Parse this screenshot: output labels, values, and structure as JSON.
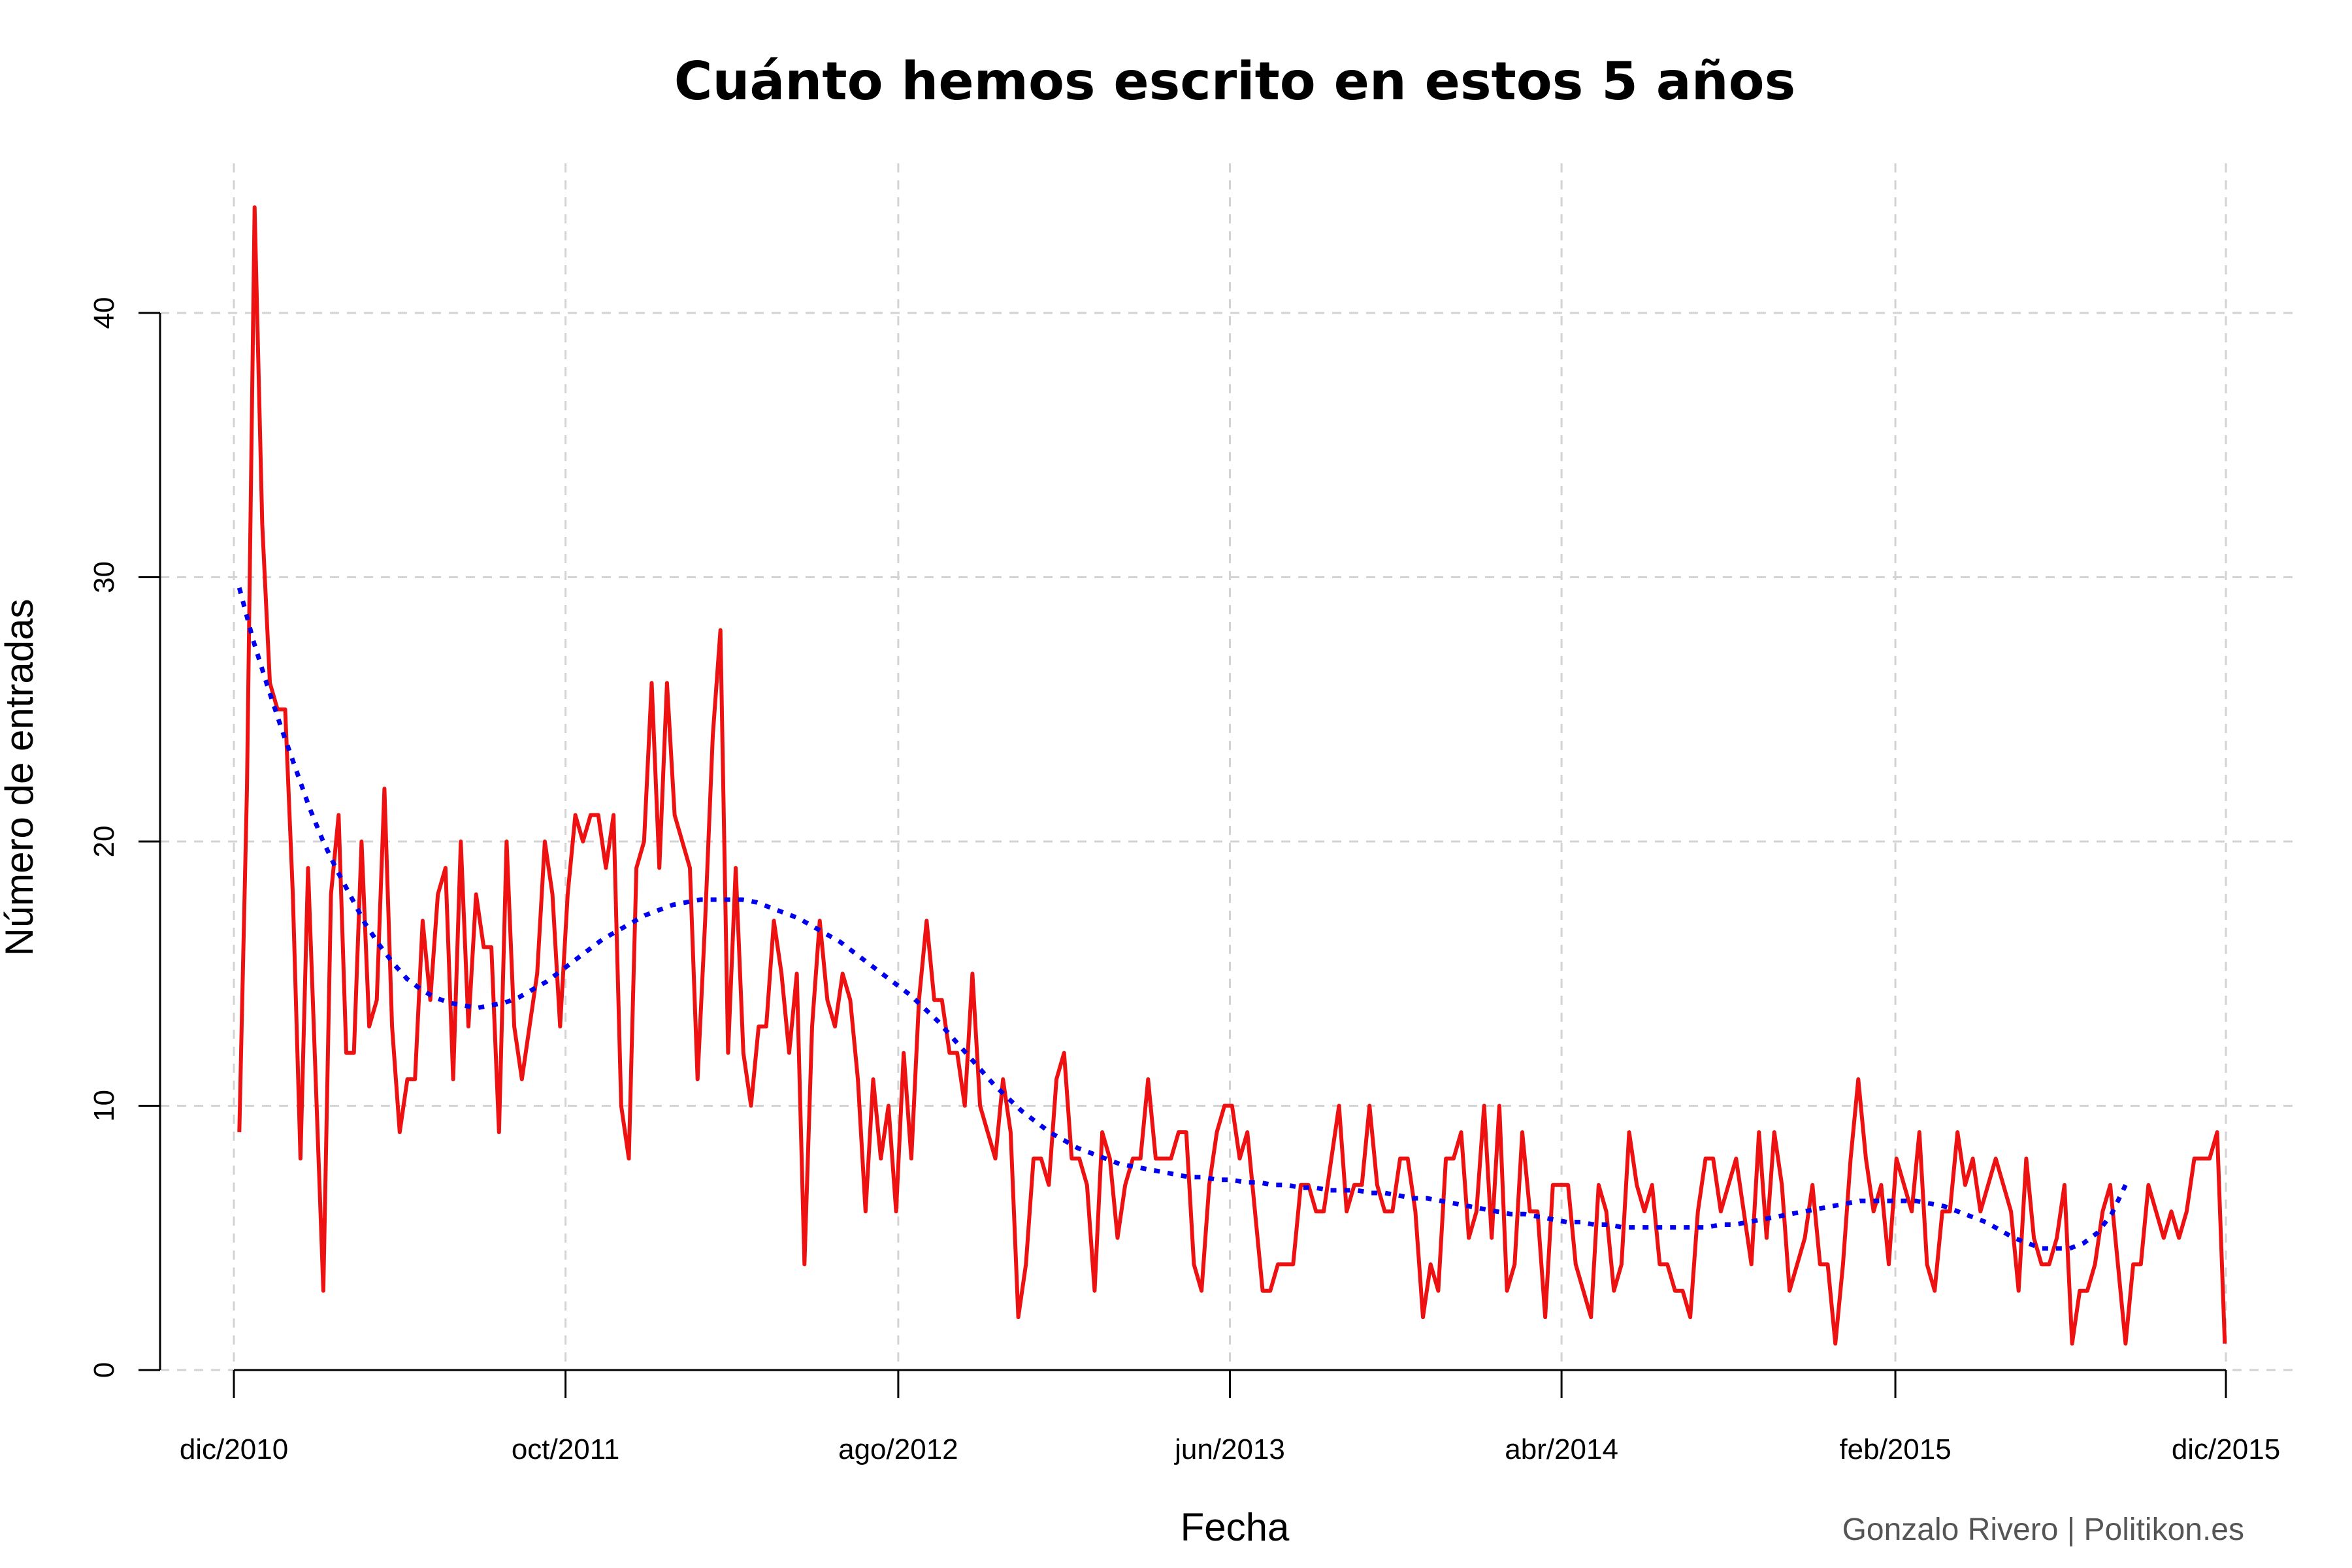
{
  "chart_data": {
    "type": "line",
    "title": "Cuánto hemos escrito en estos 5 años",
    "xlabel": "Fecha",
    "ylabel": "Número de entradas",
    "credit": "Gonzalo Rivero | Politikon.es",
    "x_start": "2010-12-06",
    "x_step_days": 7,
    "xlim": [
      "2010-12-01",
      "2015-12-01"
    ],
    "ylim": [
      0,
      44
    ],
    "x_ticks": [
      {
        "date": "2010-12-01",
        "label": "dic/2010"
      },
      {
        "date": "2011-10-01",
        "label": "oct/2011"
      },
      {
        "date": "2012-08-01",
        "label": "ago/2012"
      },
      {
        "date": "2013-06-01",
        "label": "jun/2013"
      },
      {
        "date": "2014-04-01",
        "label": "abr/2014"
      },
      {
        "date": "2015-02-01",
        "label": "feb/2015"
      },
      {
        "date": "2015-12-01",
        "label": "dic/2015"
      }
    ],
    "y_ticks": [
      0,
      10,
      20,
      30,
      40
    ],
    "grid": true,
    "series": [
      {
        "style": "solid",
        "color": "#ee1111",
        "values": [
          9,
          22,
          44,
          32,
          26,
          25,
          25,
          18,
          8,
          19,
          11,
          3,
          18,
          21,
          12,
          12,
          20,
          13,
          14,
          22,
          13,
          9,
          11,
          11,
          17,
          14,
          18,
          19,
          11,
          20,
          13,
          18,
          16,
          16,
          9,
          20,
          13,
          11,
          13,
          15,
          20,
          18,
          13,
          18,
          21,
          20,
          21,
          21,
          19,
          21,
          10,
          8,
          19,
          20,
          26,
          19,
          26,
          21,
          20,
          19,
          11,
          17,
          24,
          28,
          12,
          19,
          12,
          10,
          13,
          13,
          17,
          15,
          12,
          15,
          4,
          13,
          17,
          14,
          13,
          15,
          14,
          11,
          6,
          11,
          8,
          10,
          6,
          12,
          8,
          14,
          17,
          14,
          14,
          12,
          12,
          10,
          15,
          10,
          9,
          8,
          11,
          9,
          2,
          4,
          8,
          8,
          7,
          11,
          12,
          8,
          8,
          7,
          3,
          9,
          8,
          5,
          7,
          8,
          8,
          11,
          8,
          8,
          8,
          9,
          9,
          4,
          3,
          7,
          9,
          10,
          10,
          8,
          9,
          6,
          3,
          3,
          4,
          4,
          4,
          7,
          7,
          6,
          6,
          8,
          10,
          6,
          7,
          7,
          10,
          7,
          6,
          6,
          8,
          8,
          6,
          2,
          4,
          3,
          8,
          8,
          9,
          5,
          6,
          10,
          5,
          10,
          3,
          4,
          9,
          6,
          6,
          2,
          7,
          7,
          7,
          4,
          3,
          2,
          7,
          6,
          3,
          4,
          9,
          7,
          6,
          7,
          4,
          4,
          3,
          3,
          2,
          6,
          8,
          8,
          6,
          7,
          8,
          6,
          4,
          9,
          5,
          9,
          7,
          3,
          4,
          5,
          7,
          4,
          4,
          1,
          4,
          8,
          11,
          8,
          6,
          7,
          4,
          8,
          7,
          6,
          9,
          4,
          3,
          6,
          6,
          9,
          7,
          8,
          6,
          7,
          8,
          7,
          6,
          3,
          8,
          5,
          4,
          4,
          5,
          7,
          1,
          3,
          3,
          4,
          6,
          7,
          4,
          1,
          4,
          4,
          7,
          6,
          5,
          6,
          5,
          6,
          8,
          8,
          8,
          9,
          1
        ]
      },
      {
        "style": "dotted",
        "color": "#0000ee",
        "values": [
          29.6,
          27.6,
          25.9,
          24.3,
          22.8,
          21.3,
          20.0,
          18.9,
          17.9,
          16.9,
          16.1,
          15.4,
          14.8,
          14.4,
          14.1,
          13.9,
          13.8,
          13.7,
          13.8,
          13.9,
          14.1,
          14.4,
          14.7,
          15.1,
          15.5,
          15.9,
          16.3,
          16.6,
          16.9,
          17.2,
          17.4,
          17.6,
          17.7,
          17.8,
          17.8,
          17.8,
          17.8,
          17.7,
          17.5,
          17.3,
          17.1,
          16.8,
          16.5,
          16.2,
          15.8,
          15.4,
          15.0,
          14.6,
          14.2,
          13.7,
          13.2,
          12.6,
          12.0,
          11.4,
          10.8,
          10.3,
          9.8,
          9.4,
          9.0,
          8.7,
          8.4,
          8.2,
          8.0,
          7.8,
          7.7,
          7.6,
          7.5,
          7.4,
          7.3,
          7.3,
          7.2,
          7.2,
          7.1,
          7.1,
          7.0,
          7.0,
          6.9,
          6.9,
          6.8,
          6.8,
          6.8,
          6.7,
          6.7,
          6.6,
          6.5,
          6.5,
          6.4,
          6.3,
          6.2,
          6.1,
          6.0,
          5.9,
          5.9,
          5.8,
          5.7,
          5.6,
          5.6,
          5.5,
          5.5,
          5.4,
          5.4,
          5.4,
          5.4,
          5.4,
          5.4,
          5.4,
          5.5,
          5.5,
          5.6,
          5.7,
          5.8,
          5.9,
          6.0,
          6.1,
          6.2,
          6.3,
          6.4,
          6.4,
          6.4,
          6.4,
          6.4,
          6.3,
          6.2,
          6.0,
          5.8,
          5.6,
          5.3,
          5.0,
          4.8,
          4.6,
          4.6,
          4.6,
          4.8,
          5.2,
          5.9,
          7.0
        ]
      }
    ]
  }
}
